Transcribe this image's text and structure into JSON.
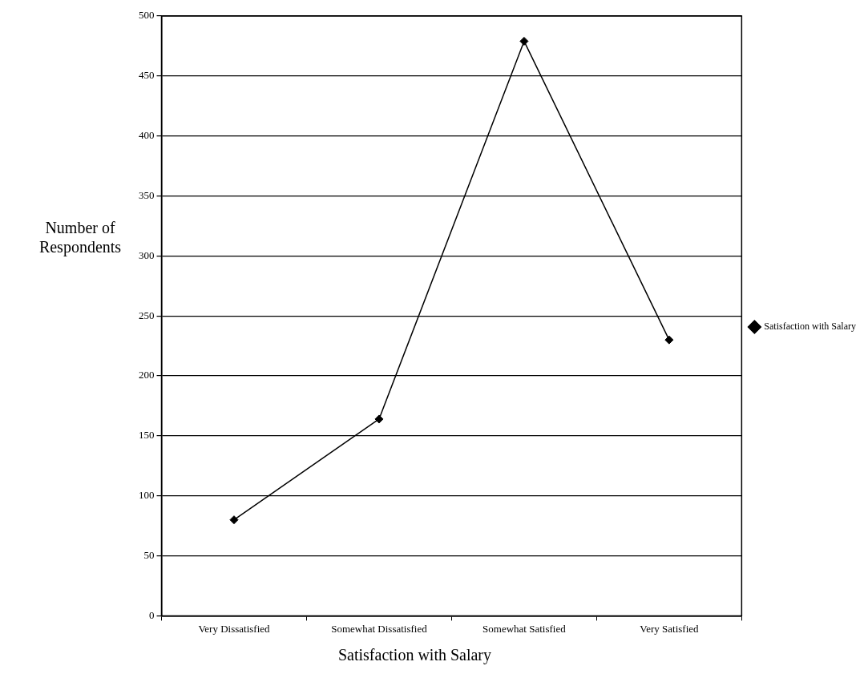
{
  "chart_data": {
    "type": "line",
    "xlabel": "Satisfaction with Salary",
    "ylabel": "Number of Respondents",
    "categories": [
      "Very Dissatisfied",
      "Somewhat Dissatisfied",
      "Somewhat Satisfied",
      "Very Satisfied"
    ],
    "series": [
      {
        "name": "Satisfaction with Salary",
        "color": "#000000",
        "values": [
          80,
          164,
          479,
          230
        ]
      }
    ],
    "ylim": [
      0,
      500
    ],
    "yticks": [
      0,
      50,
      100,
      150,
      200,
      250,
      300,
      350,
      400,
      450,
      500
    ],
    "grid": "y",
    "legend": "right",
    "marker": "diamond",
    "line_style": "solid"
  }
}
